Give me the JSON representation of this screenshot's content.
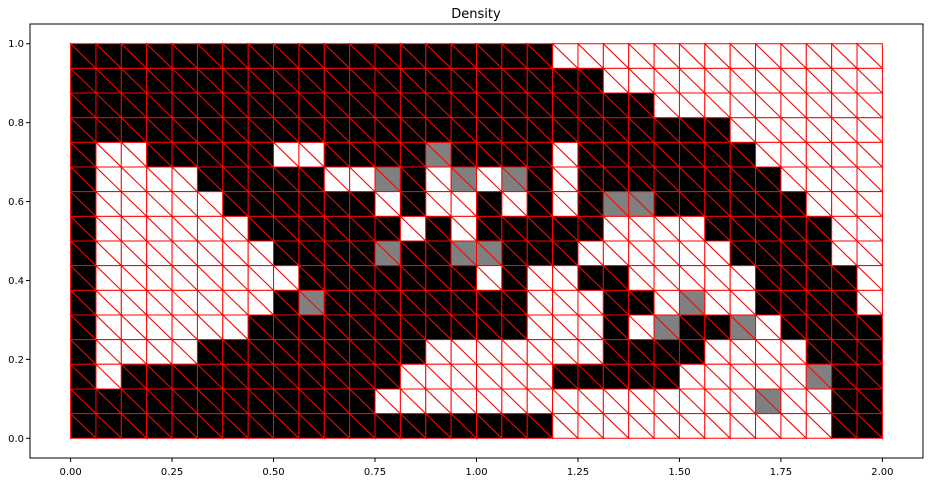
{
  "chart_data": {
    "type": "heatmap",
    "title": "Density",
    "xlabel": "",
    "ylabel": "",
    "xlim": [
      -0.1,
      2.1
    ],
    "ylim": [
      -0.05,
      1.05
    ],
    "x_ticks": [
      0.0,
      0.25,
      0.5,
      0.75,
      1.0,
      1.25,
      1.5,
      1.75,
      2.0
    ],
    "x_tick_labels": [
      "0.00",
      "0.25",
      "0.50",
      "0.75",
      "1.00",
      "1.25",
      "1.50",
      "1.75",
      "2.00"
    ],
    "y_ticks": [
      0.0,
      0.2,
      0.4,
      0.6,
      0.8,
      1.0
    ],
    "y_tick_labels": [
      "0.0",
      "0.2",
      "0.4",
      "0.6",
      "0.8",
      "1.0"
    ],
    "grid": false,
    "legend": "none",
    "mesh": {
      "nx": 32,
      "ny": 16,
      "domain": [
        [
          0,
          2
        ],
        [
          0,
          1
        ]
      ],
      "element": "triangles (diagonal from upper-left to lower-right of each cell)",
      "edge_color": "#ff0000"
    },
    "colormap": {
      "0": "#ffffff",
      "1": "#000000"
    },
    "density_rows_top_to_bottom": [
      "11111111111111111110000000000000",
      "11111111111111111111100000000000",
      "11111111111111111111111000000000",
      "11111111111111111111111111000000",
      "10011111001111111110111111100000",
      "10000111110001010110111111110000",
      "10000011111101001010100111111000",
      "10000001111110101111100001111100",
      "10000000111111111111000000111100",
      "10000000011111110100110000011110",
      "10000000111111111100011000011110",
      "10000001111111111100010111001111",
      "10000111111111000000011110000111",
      "10111111111110000001111100000111",
      "11111111111100000000000000000011",
      "11111111111111111110000000000011"
    ],
    "intermediate_cells": [
      {
        "col": 12,
        "row": 8,
        "value": 0.5
      },
      {
        "col": 15,
        "row": 8,
        "value": 0.5
      },
      {
        "col": 16,
        "row": 8,
        "value": 0.5
      },
      {
        "col": 12,
        "row": 5,
        "value": 0.5
      },
      {
        "col": 15,
        "row": 5,
        "value": 0.5
      },
      {
        "col": 17,
        "row": 5,
        "value": 0.5
      },
      {
        "col": 14,
        "row": 4,
        "value": 0.5
      },
      {
        "col": 21,
        "row": 6,
        "value": 0.5
      },
      {
        "col": 22,
        "row": 6,
        "value": 0.5
      },
      {
        "col": 23,
        "row": 11,
        "value": 0.5
      },
      {
        "col": 24,
        "row": 10,
        "value": 0.5
      },
      {
        "col": 26,
        "row": 11,
        "value": 0.5
      },
      {
        "col": 27,
        "row": 14,
        "value": 0.5
      },
      {
        "col": 29,
        "row": 13,
        "value": 0.5
      },
      {
        "col": 9,
        "row": 10,
        "value": 0.5
      }
    ]
  }
}
